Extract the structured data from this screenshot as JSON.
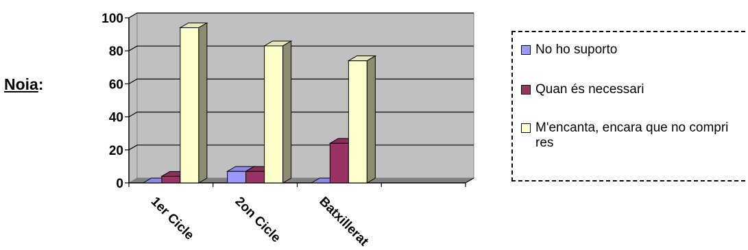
{
  "prefix": {
    "label": "Noia",
    "colon": ":"
  },
  "chart_data": {
    "type": "bar",
    "title": "",
    "xlabel": "",
    "ylabel": "",
    "categories": [
      "1er Cicle",
      "2on Cicle",
      "Batxillerat",
      ""
    ],
    "ylim": [
      0,
      100
    ],
    "yticks": [
      0,
      20,
      40,
      60,
      80,
      100
    ],
    "grid": true,
    "legend_position": "right",
    "series": [
      {
        "name": "No ho suporto",
        "color": "#9999ff",
        "values": [
          0,
          7,
          0,
          null
        ]
      },
      {
        "name": "Quan és necessari",
        "color": "#993366",
        "values": [
          4,
          7,
          24,
          null
        ]
      },
      {
        "name": "M'encanta, encara que no compri res",
        "color": "#ffffcc",
        "values": [
          94,
          83,
          74,
          null
        ]
      }
    ]
  }
}
